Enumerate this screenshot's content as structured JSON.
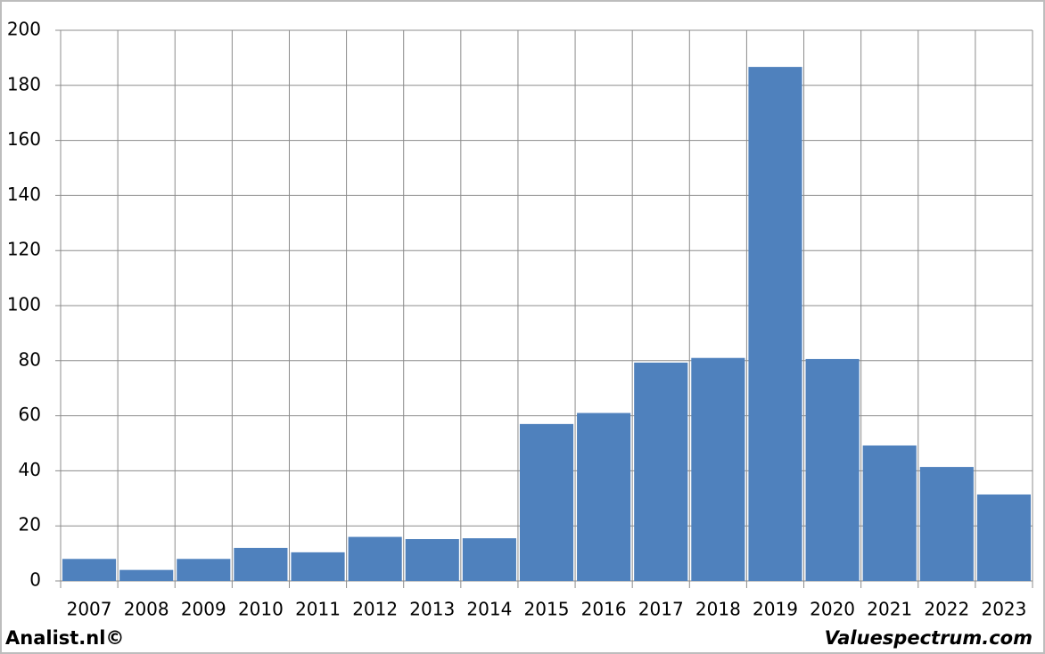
{
  "chart_data": {
    "type": "bar",
    "categories": [
      "2007",
      "2008",
      "2009",
      "2010",
      "2011",
      "2012",
      "2013",
      "2014",
      "2015",
      "2016",
      "2017",
      "2018",
      "2019",
      "2020",
      "2021",
      "2022",
      "2023"
    ],
    "values": [
      8,
      4,
      8,
      12,
      10.4,
      16,
      15.2,
      15.5,
      57,
      61,
      79.3,
      81,
      186.7,
      80.6,
      49.2,
      41.4,
      31.4
    ],
    "color": "#4f81bd",
    "ylim": [
      0,
      200
    ],
    "yticks": [
      0,
      20,
      40,
      60,
      80,
      100,
      120,
      140,
      160,
      180,
      200
    ],
    "grid": true,
    "footer_left": "Analist.nl©",
    "footer_right": "Valuespectrum.com"
  }
}
